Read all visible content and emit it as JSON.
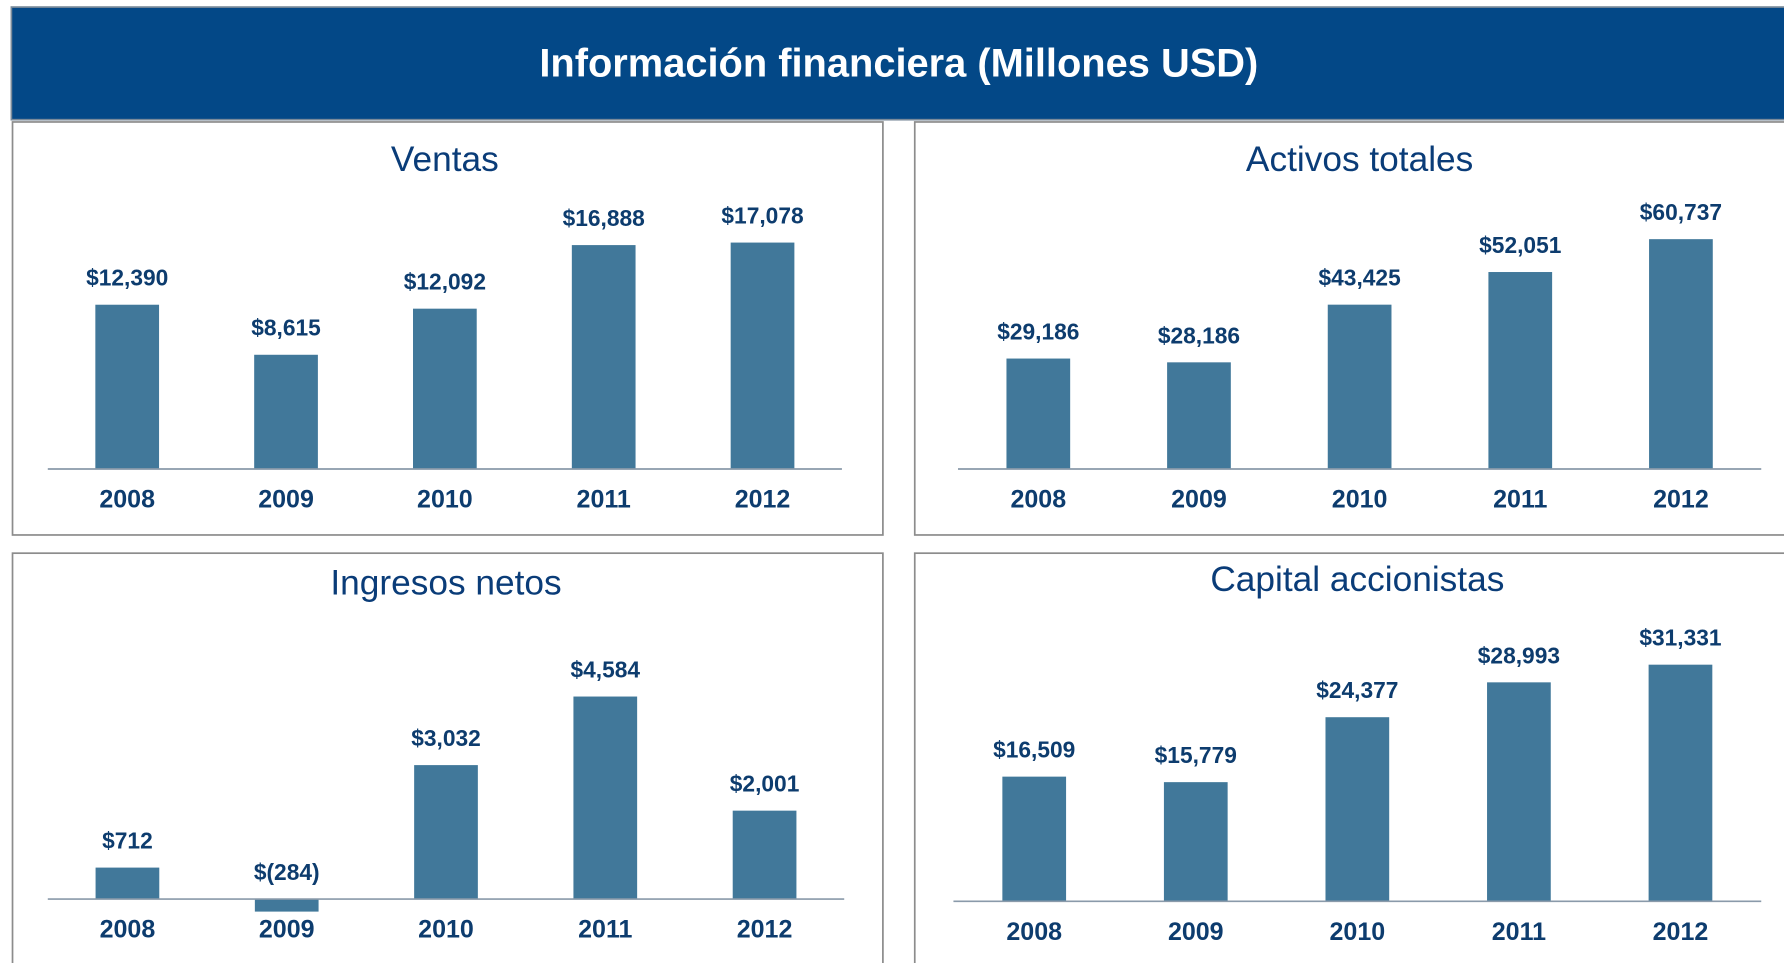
{
  "header": {
    "title": "Información financiera (Millones USD)"
  },
  "chart_data": [
    {
      "type": "bar",
      "title": "Ventas",
      "categories": [
        "2008",
        "2009",
        "2010",
        "2011",
        "2012"
      ],
      "values": [
        12390,
        8615,
        12092,
        16888,
        17078
      ],
      "value_labels": [
        "$12,390",
        "$8,615",
        "$12,092",
        "$16,888",
        "$17,078"
      ],
      "color": "#41789a"
    },
    {
      "type": "bar",
      "title": "Activos totales",
      "categories": [
        "2008",
        "2009",
        "2010",
        "2011",
        "2012"
      ],
      "values": [
        29186,
        28186,
        43425,
        52051,
        60737
      ],
      "value_labels": [
        "$29,186",
        "$28,186",
        "$43,425",
        "$52,051",
        "$60,737"
      ],
      "color": "#41789a"
    },
    {
      "type": "bar",
      "title": "Ingresos netos",
      "categories": [
        "2008",
        "2009",
        "2010",
        "2011",
        "2012"
      ],
      "values": [
        712,
        -284,
        3032,
        4584,
        2001
      ],
      "value_labels": [
        "$712",
        "$(284)",
        "$3,032",
        "$4,584",
        "$2,001"
      ],
      "color": "#41789a"
    },
    {
      "type": "bar",
      "title": "Capital accionistas",
      "categories": [
        "2008",
        "2009",
        "2010",
        "2011",
        "2012"
      ],
      "values": [
        16509,
        15779,
        24377,
        28993,
        31331
      ],
      "value_labels": [
        "$16,509",
        "$15,779",
        "$24,377",
        "$28,993",
        "$31,331"
      ],
      "color": "#41789a"
    }
  ]
}
